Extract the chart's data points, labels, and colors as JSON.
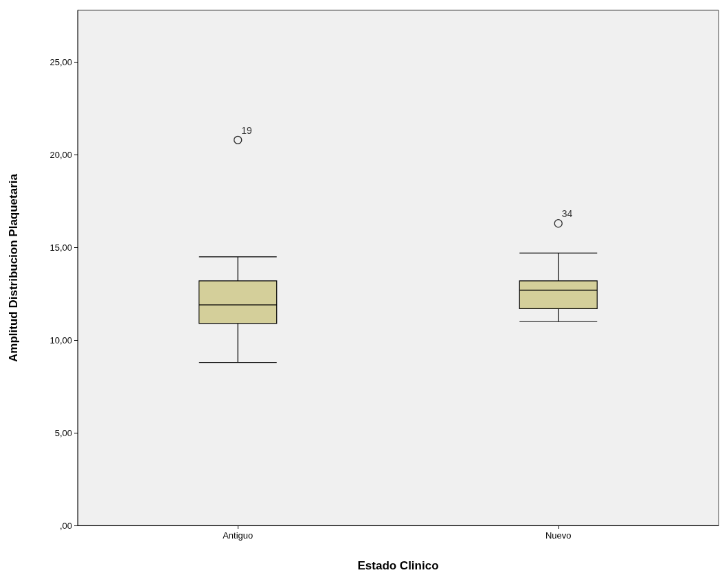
{
  "chart_data": {
    "type": "box",
    "xlabel": "Estado Clinico",
    "ylabel": "Amplitud Distribucion Plaquetaria",
    "categories": [
      "Antiguo",
      "Nuevo"
    ],
    "boxes": [
      {
        "low": 8.8,
        "q1": 10.9,
        "median": 11.9,
        "q3": 13.2,
        "high": 14.5,
        "outliers": [
          20.8
        ]
      },
      {
        "low": 11.0,
        "q1": 11.7,
        "median": 12.7,
        "q3": 13.2,
        "high": 14.7,
        "outliers": [
          16.3
        ]
      }
    ],
    "color": "#d4cf9a",
    "ylim": [
      0,
      27.8
    ],
    "yticks": [
      {
        "value": 0,
        "label": ",00"
      },
      {
        "value": 5,
        "label": "5,00"
      },
      {
        "value": 10,
        "label": "10,00"
      },
      {
        "value": 15,
        "label": "15,00"
      },
      {
        "value": 20,
        "label": "20,00"
      },
      {
        "value": 25,
        "label": "25,00"
      }
    ],
    "annotations": [
      "19",
      "34"
    ],
    "grid": false
  }
}
